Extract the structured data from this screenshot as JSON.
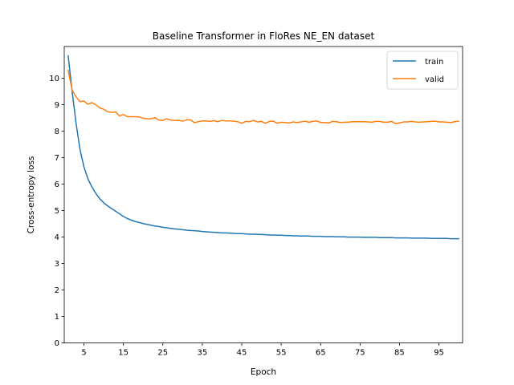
{
  "chart_data": {
    "type": "line",
    "title": "Baseline Transformer in FloRes NE_EN dataset",
    "xlabel": "Epoch",
    "ylabel": "Cross-entropy loss",
    "xlim": [
      0,
      101
    ],
    "ylim": [
      0,
      11.2
    ],
    "xticks": [
      5,
      15,
      25,
      35,
      45,
      55,
      65,
      75,
      85,
      95
    ],
    "yticks": [
      0,
      1,
      2,
      3,
      4,
      5,
      6,
      7,
      8,
      9,
      10
    ],
    "grid": false,
    "legend_position": "top-right",
    "series": [
      {
        "name": "train",
        "color": "#1f77b4",
        "x": [
          1,
          2,
          3,
          4,
          5,
          6,
          7,
          8,
          9,
          10,
          11,
          12,
          13,
          14,
          15,
          16,
          17,
          18,
          19,
          20,
          21,
          22,
          23,
          24,
          25,
          26,
          27,
          28,
          29,
          30,
          31,
          32,
          33,
          34,
          35,
          36,
          37,
          38,
          39,
          40,
          41,
          42,
          43,
          44,
          45,
          46,
          47,
          48,
          49,
          50,
          51,
          52,
          53,
          54,
          55,
          56,
          57,
          58,
          59,
          60,
          61,
          62,
          63,
          64,
          65,
          66,
          67,
          68,
          69,
          70,
          71,
          72,
          73,
          74,
          75,
          76,
          77,
          78,
          79,
          80,
          81,
          82,
          83,
          84,
          85,
          86,
          87,
          88,
          89,
          90,
          91,
          92,
          93,
          94,
          95,
          96,
          97,
          98,
          99,
          100
        ],
        "y": [
          10.85,
          9.5,
          8.3,
          7.3,
          6.65,
          6.2,
          5.9,
          5.65,
          5.45,
          5.3,
          5.18,
          5.08,
          4.98,
          4.88,
          4.78,
          4.7,
          4.64,
          4.59,
          4.55,
          4.51,
          4.48,
          4.45,
          4.42,
          4.4,
          4.37,
          4.35,
          4.33,
          4.31,
          4.3,
          4.28,
          4.26,
          4.25,
          4.24,
          4.23,
          4.21,
          4.2,
          4.19,
          4.18,
          4.17,
          4.16,
          4.16,
          4.15,
          4.14,
          4.13,
          4.13,
          4.12,
          4.11,
          4.11,
          4.1,
          4.1,
          4.09,
          4.08,
          4.08,
          4.07,
          4.07,
          4.06,
          4.06,
          4.05,
          4.05,
          4.04,
          4.04,
          4.04,
          4.03,
          4.03,
          4.03,
          4.02,
          4.02,
          4.02,
          4.01,
          4.01,
          4.01,
          4.0,
          4.0,
          4.0,
          4.0,
          3.99,
          3.99,
          3.99,
          3.99,
          3.98,
          3.98,
          3.98,
          3.98,
          3.97,
          3.97,
          3.97,
          3.97,
          3.96,
          3.96,
          3.96,
          3.96,
          3.96,
          3.95,
          3.95,
          3.95,
          3.95,
          3.95,
          3.94,
          3.94,
          3.94
        ]
      },
      {
        "name": "valid",
        "color": "#ff7f0e",
        "x": [
          1,
          2,
          3,
          4,
          5,
          6,
          7,
          8,
          9,
          10,
          11,
          12,
          13,
          14,
          15,
          16,
          17,
          18,
          19,
          20,
          21,
          22,
          23,
          24,
          25,
          26,
          27,
          28,
          29,
          30,
          31,
          32,
          33,
          34,
          35,
          36,
          37,
          38,
          39,
          40,
          41,
          42,
          43,
          44,
          45,
          46,
          47,
          48,
          49,
          50,
          51,
          52,
          53,
          54,
          55,
          56,
          57,
          58,
          59,
          60,
          61,
          62,
          63,
          64,
          65,
          66,
          67,
          68,
          69,
          70,
          71,
          72,
          73,
          74,
          75,
          76,
          77,
          78,
          79,
          80,
          81,
          82,
          83,
          84,
          85,
          86,
          87,
          88,
          89,
          90,
          91,
          92,
          93,
          94,
          95,
          96,
          97,
          98,
          99,
          100
        ],
        "y": [
          10.3,
          9.55,
          9.3,
          9.12,
          9.14,
          9.02,
          9.08,
          9.0,
          8.88,
          8.83,
          8.74,
          8.71,
          8.73,
          8.58,
          8.63,
          8.55,
          8.55,
          8.55,
          8.54,
          8.49,
          8.47,
          8.47,
          8.51,
          8.42,
          8.41,
          8.47,
          8.42,
          8.41,
          8.41,
          8.38,
          8.43,
          8.43,
          8.32,
          8.36,
          8.39,
          8.39,
          8.37,
          8.4,
          8.36,
          8.41,
          8.39,
          8.39,
          8.38,
          8.36,
          8.3,
          8.37,
          8.36,
          8.41,
          8.35,
          8.37,
          8.3,
          8.37,
          8.38,
          8.3,
          8.34,
          8.33,
          8.31,
          8.35,
          8.33,
          8.35,
          8.38,
          8.34,
          8.37,
          8.39,
          8.33,
          8.33,
          8.31,
          8.37,
          8.36,
          8.33,
          8.34,
          8.34,
          8.36,
          8.36,
          8.36,
          8.36,
          8.35,
          8.34,
          8.37,
          8.37,
          8.34,
          8.34,
          8.37,
          8.29,
          8.31,
          8.35,
          8.35,
          8.37,
          8.35,
          8.34,
          8.35,
          8.36,
          8.37,
          8.38,
          8.35,
          8.35,
          8.34,
          8.33,
          8.36,
          8.38
        ]
      }
    ]
  }
}
